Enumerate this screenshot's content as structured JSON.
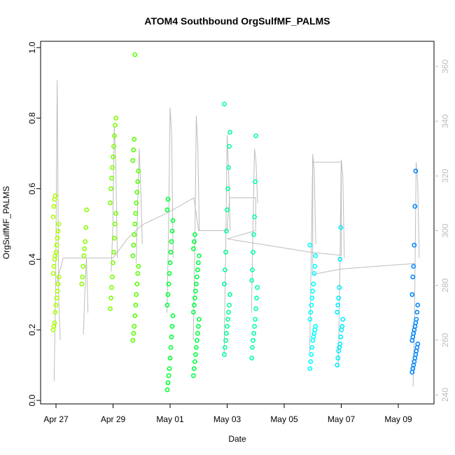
{
  "chart_data": {
    "type": "scatter",
    "title": "ATOM4 Southbound OrgSulfMF_PALMS",
    "xlabel": "Date",
    "ylabel": "OrgSulfMF_PALMS",
    "x_range": [
      "2018-04-26T18:00",
      "2018-05-10T14:00"
    ],
    "ylim": [
      0,
      1.0
    ],
    "y2lim": [
      240,
      360
    ],
    "x_ticks": [
      {
        "date": "2018-04-27",
        "label": "Apr 27"
      },
      {
        "date": "2018-04-29",
        "label": "Apr 29"
      },
      {
        "date": "2018-05-01",
        "label": "May 01"
      },
      {
        "date": "2018-05-03",
        "label": "May 03"
      },
      {
        "date": "2018-05-05",
        "label": "May 05"
      },
      {
        "date": "2018-05-07",
        "label": "May 07"
      },
      {
        "date": "2018-05-09",
        "label": "May 09"
      }
    ],
    "y_ticks": [
      "0.0",
      "0.2",
      "0.4",
      "0.6",
      "0.8",
      "1.0"
    ],
    "y2_ticks": [
      "240",
      "260",
      "280",
      "300",
      "320",
      "340",
      "360"
    ],
    "grid": false,
    "legend": "none",
    "point_colors": [
      "#aaff00",
      "#88ff00",
      "#55ff00",
      "#00ff33",
      "#00ff99",
      "#00ffcc",
      "#00ffff",
      "#0088ff"
    ],
    "groups": [
      {
        "date": "2018-04-27",
        "color": "#aaff00",
        "y": [
          0.2,
          0.21,
          0.22,
          0.25,
          0.27,
          0.29,
          0.31,
          0.33,
          0.35,
          0.36,
          0.38,
          0.4,
          0.41,
          0.42,
          0.44,
          0.46,
          0.48,
          0.5,
          0.52,
          0.55,
          0.57,
          0.58
        ]
      },
      {
        "date": "2018-04-28",
        "color": "#88ff00",
        "y": [
          0.33,
          0.35,
          0.38,
          0.41,
          0.43,
          0.45,
          0.49,
          0.54
        ]
      },
      {
        "date": "2018-04-29",
        "color": "#77ff00",
        "y": [
          0.26,
          0.29,
          0.32,
          0.35,
          0.39,
          0.42,
          0.46,
          0.5,
          0.53,
          0.56,
          0.6,
          0.63,
          0.66,
          0.69,
          0.72,
          0.75,
          0.78,
          0.8
        ]
      },
      {
        "date": "2018-04-29T19:00",
        "color": "#55ff00",
        "y": [
          0.17,
          0.19,
          0.21,
          0.24,
          0.27,
          0.3,
          0.33,
          0.36,
          0.38,
          0.41,
          0.44,
          0.47,
          0.5,
          0.53,
          0.56,
          0.59,
          0.62,
          0.65,
          0.68,
          0.71,
          0.74,
          0.98
        ]
      },
      {
        "date": "2018-05-01",
        "color": "#00ff33",
        "y": [
          0.03,
          0.05,
          0.07,
          0.09,
          0.12,
          0.15,
          0.18,
          0.21,
          0.24,
          0.27,
          0.3,
          0.33,
          0.36,
          0.39,
          0.42,
          0.45,
          0.48,
          0.51,
          0.54,
          0.57
        ]
      },
      {
        "date": "2018-05-01T22:00",
        "color": "#00ff44",
        "y": [
          0.07,
          0.09,
          0.11,
          0.13,
          0.15,
          0.17,
          0.19,
          0.21,
          0.23,
          0.25,
          0.27,
          0.29,
          0.31,
          0.33,
          0.35,
          0.37,
          0.39,
          0.41,
          0.43,
          0.45,
          0.47
        ]
      },
      {
        "date": "2018-05-03",
        "color": "#00ff99",
        "y": [
          0.13,
          0.15,
          0.17,
          0.19,
          0.21,
          0.23,
          0.25,
          0.27,
          0.3,
          0.33,
          0.37,
          0.42,
          0.48,
          0.54,
          0.6,
          0.66,
          0.72,
          0.76,
          0.84
        ]
      },
      {
        "date": "2018-05-03T23:00",
        "color": "#00ffaa",
        "y": [
          0.12,
          0.15,
          0.17,
          0.19,
          0.21,
          0.23,
          0.26,
          0.29,
          0.32,
          0.34,
          0.37,
          0.42,
          0.47,
          0.52,
          0.62,
          0.75
        ]
      },
      {
        "date": "2018-05-06",
        "color": "#00ffff",
        "y": [
          0.09,
          0.11,
          0.13,
          0.15,
          0.17,
          0.18,
          0.19,
          0.2,
          0.21,
          0.23,
          0.25,
          0.27,
          0.29,
          0.31,
          0.33,
          0.36,
          0.38,
          0.41,
          0.44
        ]
      },
      {
        "date": "2018-05-06T23:00",
        "color": "#00eeff",
        "y": [
          0.1,
          0.12,
          0.14,
          0.15,
          0.16,
          0.18,
          0.2,
          0.21,
          0.23,
          0.25,
          0.27,
          0.29,
          0.32,
          0.4,
          0.49
        ]
      },
      {
        "date": "2018-05-09T14:00",
        "color": "#0088ff",
        "y": [
          0.08,
          0.09,
          0.1,
          0.11,
          0.12,
          0.13,
          0.14,
          0.15,
          0.16,
          0.17,
          0.18,
          0.19,
          0.2,
          0.21,
          0.22,
          0.23,
          0.25,
          0.27,
          0.3,
          0.35,
          0.38,
          0.44,
          0.55,
          0.65
        ]
      }
    ],
    "secondary_series": {
      "color": "#bdbdbd",
      "segments": [
        {
          "date": "2018-04-27T01:00",
          "y2": [
            245,
            280,
            355,
            275,
            260
          ]
        },
        {
          "date": "2018-04-28T01:00",
          "y2": [
            262,
            278,
            290,
            270
          ]
        },
        {
          "date": "2018-04-29T01:00",
          "y2": [
            285,
            300,
            338,
            325,
            290
          ]
        },
        {
          "date": "2018-04-29T22:00",
          "y2": [
            288,
            310,
            330,
            315,
            295
          ]
        },
        {
          "date": "2018-05-01T00:00",
          "y2": [
            270,
            300,
            345,
            335,
            290
          ]
        },
        {
          "date": "2018-05-01T22:00",
          "y2": [
            260,
            290,
            342,
            330,
            300
          ]
        },
        {
          "date": "2018-05-03T00:00",
          "y2": [
            255,
            290,
            335,
            320,
            300
          ]
        },
        {
          "date": "2018-05-03T23:00",
          "y2": [
            270,
            300,
            330,
            325,
            310
          ]
        },
        {
          "date": "2018-05-06T00:00",
          "y2": [
            255,
            290,
            328,
            322,
            295
          ]
        },
        {
          "date": "2018-05-07T00:00",
          "y2": [
            250,
            280,
            326,
            320,
            290
          ]
        },
        {
          "date": "2018-05-09T15:00",
          "y2": [
            243,
            270,
            325,
            318,
            290
          ]
        }
      ],
      "path": [
        [
          "2018-04-27T00:00",
          280
        ],
        [
          "2018-04-27T06:00",
          290
        ],
        [
          "2018-04-28T00:00",
          290
        ],
        [
          "2018-04-29T00:00",
          290
        ],
        [
          "2018-04-29T12:00",
          297
        ],
        [
          "2018-04-30T00:00",
          302
        ],
        [
          "2018-05-01T00:00",
          307
        ],
        [
          "2018-05-01T20:00",
          312
        ],
        [
          "2018-05-02T00:00",
          300
        ],
        [
          "2018-05-03T00:00",
          300
        ],
        [
          "2018-05-03T02:00",
          312
        ],
        [
          "2018-05-04T00:00",
          312
        ],
        [
          "2018-05-04T00:00",
          300
        ],
        [
          "2018-05-03T00:00",
          297
        ],
        [
          "2018-05-06T00:00",
          292
        ],
        [
          "2018-05-07T00:00",
          291
        ],
        [
          "2018-05-07T00:00",
          325
        ],
        [
          "2018-05-06T00:00",
          325
        ],
        [
          "2018-05-06T00:00",
          284
        ],
        [
          "2018-05-07T00:00",
          286
        ],
        [
          "2018-05-09T14:00",
          288
        ]
      ]
    }
  }
}
